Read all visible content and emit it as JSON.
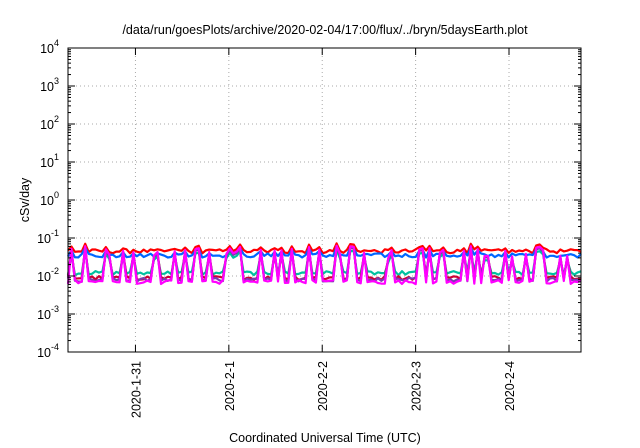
{
  "chart_data": {
    "type": "line",
    "title": "/data/run/goesPlots/archive/2020-02-04/17:00/flux/../bryn/5daysEarth.plot",
    "xlabel": "Coordinated Universal Time (UTC)",
    "ylabel": "cSv/day",
    "yscale": "log",
    "ylim": [
      0.0001,
      10000
    ],
    "grid": true,
    "legend": "none",
    "xlim": [
      "2020-01-30T06:40",
      "2020-02-04T18:30"
    ],
    "x_ticks": [
      {
        "label": "2020-1-31",
        "date": "2020-01-31"
      },
      {
        "label": "2020-2-1",
        "date": "2020-02-01"
      },
      {
        "label": "2020-2-2",
        "date": "2020-02-02"
      },
      {
        "label": "2020-2-3",
        "date": "2020-02-03"
      },
      {
        "label": "2020-2-4",
        "date": "2020-02-04"
      }
    ],
    "y_ticks": [
      {
        "base": "10",
        "exp": "4",
        "value": 10000
      },
      {
        "base": "10",
        "exp": "3",
        "value": 1000
      },
      {
        "base": "10",
        "exp": "2",
        "value": 100
      },
      {
        "base": "10",
        "exp": "1",
        "value": 10
      },
      {
        "base": "10",
        "exp": "0",
        "value": 1
      },
      {
        "base": "10",
        "exp": "-1",
        "value": 0.1
      },
      {
        "base": "10",
        "exp": "-2",
        "value": 0.01
      },
      {
        "base": "10",
        "exp": "-3",
        "value": 0.001
      },
      {
        "base": "10",
        "exp": "-4",
        "value": 0.0001
      }
    ],
    "series": [
      {
        "color": "#ff0000",
        "baseline": 0.045,
        "spike": 0.075
      },
      {
        "color": "#0066ff",
        "baseline": 0.035,
        "spike": 0.06
      },
      {
        "color": "#00c0a0",
        "baseline": 0.012,
        "spike": 0.05
      },
      {
        "color": "#cc0033",
        "baseline": 0.009,
        "spike": 0.06
      },
      {
        "color": "#7a3cb0",
        "baseline": 0.008,
        "spike": 0.06
      },
      {
        "color": "#ff00ff",
        "baseline": 0.007,
        "spike": 0.065
      }
    ]
  }
}
